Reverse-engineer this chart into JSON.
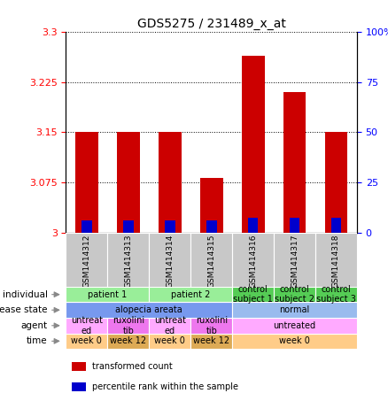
{
  "title": "GDS5275 / 231489_x_at",
  "samples": [
    "GSM1414312",
    "GSM1414313",
    "GSM1414314",
    "GSM1414315",
    "GSM1414316",
    "GSM1414317",
    "GSM1414318"
  ],
  "red_values": [
    3.15,
    3.15,
    3.15,
    3.082,
    3.265,
    3.21,
    3.15
  ],
  "blue_values": [
    3.018,
    3.018,
    3.018,
    3.018,
    3.022,
    3.022,
    3.022
  ],
  "ymin": 3.0,
  "ymax": 3.3,
  "yticks": [
    3.0,
    3.075,
    3.15,
    3.225,
    3.3
  ],
  "ytick_labels": [
    "3",
    "3.075",
    "3.15",
    "3.225",
    "3.3"
  ],
  "right_yticks": [
    0,
    25,
    50,
    75,
    100
  ],
  "right_ytick_labels": [
    "0",
    "25",
    "50",
    "75",
    "100%"
  ],
  "bar_color_red": "#cc0000",
  "bar_color_blue": "#0000cc",
  "sample_bg": "#c8c8c8",
  "individual_row": {
    "label": "individual",
    "groups": [
      {
        "text": "patient 1",
        "cols": [
          0,
          1
        ],
        "color": "#99ee99"
      },
      {
        "text": "patient 2",
        "cols": [
          2,
          3
        ],
        "color": "#99ee99"
      },
      {
        "text": "control\nsubject 1",
        "cols": [
          4
        ],
        "color": "#55cc55"
      },
      {
        "text": "control\nsubject 2",
        "cols": [
          5
        ],
        "color": "#55cc55"
      },
      {
        "text": "control\nsubject 3",
        "cols": [
          6
        ],
        "color": "#55cc55"
      }
    ]
  },
  "disease_row": {
    "label": "disease state",
    "groups": [
      {
        "text": "alopecia areata",
        "cols": [
          0,
          1,
          2,
          3
        ],
        "color": "#7799ee"
      },
      {
        "text": "normal",
        "cols": [
          4,
          5,
          6
        ],
        "color": "#99bbee"
      }
    ]
  },
  "agent_row": {
    "label": "agent",
    "groups": [
      {
        "text": "untreat\ned",
        "cols": [
          0
        ],
        "color": "#ffaaff"
      },
      {
        "text": "ruxolini\ntib",
        "cols": [
          1
        ],
        "color": "#ee77ee"
      },
      {
        "text": "untreat\ned",
        "cols": [
          2
        ],
        "color": "#ffaaff"
      },
      {
        "text": "ruxolini\ntib",
        "cols": [
          3
        ],
        "color": "#ee77ee"
      },
      {
        "text": "untreated",
        "cols": [
          4,
          5,
          6
        ],
        "color": "#ffaaff"
      }
    ]
  },
  "time_row": {
    "label": "time",
    "groups": [
      {
        "text": "week 0",
        "cols": [
          0
        ],
        "color": "#ffcc88"
      },
      {
        "text": "week 12",
        "cols": [
          1
        ],
        "color": "#ddaa55"
      },
      {
        "text": "week 0",
        "cols": [
          2
        ],
        "color": "#ffcc88"
      },
      {
        "text": "week 12",
        "cols": [
          3
        ],
        "color": "#ddaa55"
      },
      {
        "text": "week 0",
        "cols": [
          4,
          5,
          6
        ],
        "color": "#ffcc88"
      }
    ]
  },
  "legend_items": [
    {
      "label": "transformed count",
      "color": "#cc0000"
    },
    {
      "label": "percentile rank within the sample",
      "color": "#0000cc"
    }
  ],
  "row_labels": [
    "individual",
    "disease state",
    "agent",
    "time"
  ]
}
